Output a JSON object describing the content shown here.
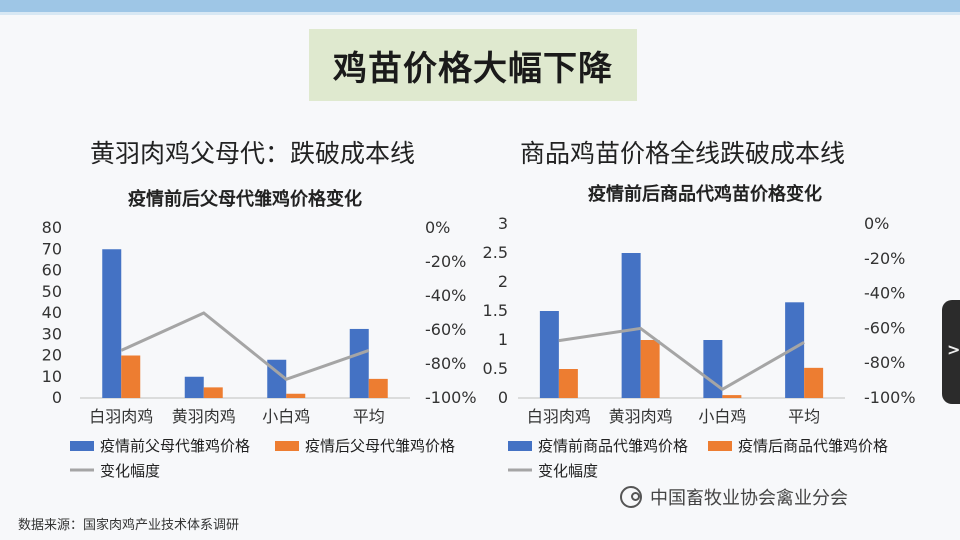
{
  "slide": {
    "title": "鸡苗价格大幅下降",
    "left_heading": "黄羽肉鸡父母代：跌破成本线",
    "right_heading": "商品鸡苗价格全线跌破成本线",
    "source": "数据来源：国家肉鸡产业技术体系调研",
    "watermark": "中国畜牧业协会禽业分会",
    "nav_arrow": ">"
  },
  "colors": {
    "before": "#4472c4",
    "after": "#ed7d31",
    "change": "#a5a5a5"
  },
  "chart_data": [
    {
      "type": "bar",
      "title": "疫情前后父母代雏鸡价格变化",
      "categories": [
        "白羽肉鸡",
        "黄羽肉鸡",
        "小白鸡",
        "平均"
      ],
      "series": [
        {
          "name": "疫情前父母代雏鸡价格",
          "values": [
            70,
            10,
            18,
            32.5
          ],
          "axis": "left",
          "kind": "bar"
        },
        {
          "name": "疫情后父母代雏鸡价格",
          "values": [
            20,
            5,
            2,
            9
          ],
          "axis": "left",
          "kind": "bar"
        },
        {
          "name": "变化幅度",
          "values": [
            -0.72,
            -0.5,
            -0.89,
            -0.72
          ],
          "axis": "right",
          "kind": "line"
        }
      ],
      "y_left": {
        "min": 0,
        "max": 80,
        "ticks": [
          "0",
          "10",
          "20",
          "30",
          "40",
          "50",
          "60",
          "70",
          "80"
        ]
      },
      "y_right": {
        "min": -1,
        "max": 0,
        "ticks": [
          "-100%",
          "-80%",
          "-60%",
          "-40%",
          "-20%",
          "0%"
        ]
      },
      "grid": false,
      "legend_position": "bottom"
    },
    {
      "type": "bar",
      "title": "疫情前后商品代鸡苗价格变化",
      "categories": [
        "白羽肉鸡",
        "黄羽肉鸡",
        "小白鸡",
        "平均"
      ],
      "series": [
        {
          "name": "疫情前商品代雏鸡价格",
          "values": [
            1.5,
            2.5,
            1.0,
            1.65
          ],
          "axis": "left",
          "kind": "bar"
        },
        {
          "name": "疫情后商品代雏鸡价格",
          "values": [
            0.5,
            1.0,
            0.05,
            0.52
          ],
          "axis": "left",
          "kind": "bar"
        },
        {
          "name": "变化幅度",
          "values": [
            -0.67,
            -0.6,
            -0.95,
            -0.68
          ],
          "axis": "right",
          "kind": "line"
        }
      ],
      "y_left": {
        "min": 0,
        "max": 3,
        "ticks": [
          "0",
          "0.5",
          "1",
          "1.5",
          "2",
          "2.5",
          "3"
        ]
      },
      "y_right": {
        "min": -1,
        "max": 0,
        "ticks": [
          "-100%",
          "-80%",
          "-60%",
          "-40%",
          "-20%",
          "0%"
        ]
      },
      "grid": false,
      "legend_position": "bottom"
    }
  ]
}
